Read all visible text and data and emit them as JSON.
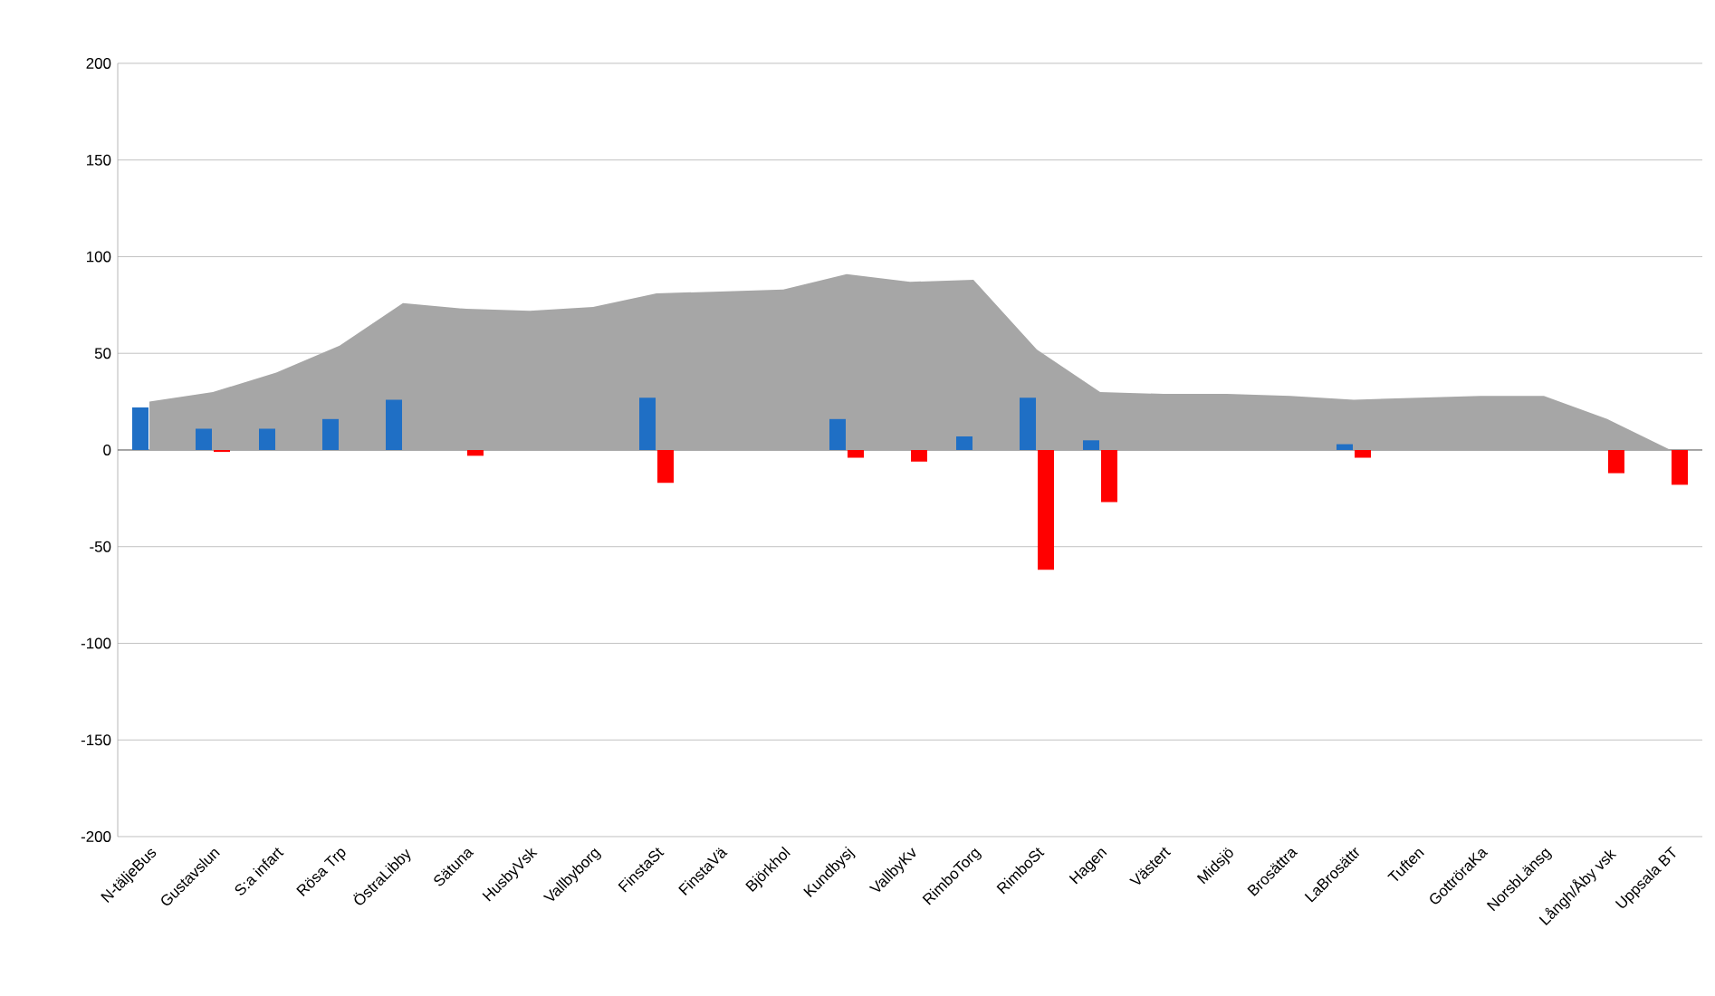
{
  "chart_data": {
    "type": "bar",
    "categories": [
      "N-täljeBus",
      "Gustavslun",
      "S:a infart",
      "Rösa Trp",
      "ÖstraLibby",
      "Sätuna",
      "HusbyVsk",
      "Vallbyborg",
      "FinstaSt",
      "FinstaVä",
      "Björkhol",
      "Kundbysj",
      "VallbyKv",
      "RimboTorg",
      "RimboSt",
      "Hagen",
      "Västert",
      "Midsjö",
      "Brosättra",
      "LaBrosättr",
      "Tuften",
      "GottröraKa",
      "NorsbLänsg",
      "Långh/Åby vsk",
      "Uppsala BT"
    ],
    "series": [
      {
        "type": "area",
        "color": "#a6a6a6",
        "values": [
          25,
          30,
          40,
          54,
          76,
          73,
          72,
          74,
          81,
          82,
          83,
          91,
          87,
          88,
          52,
          30,
          29,
          29,
          28,
          26,
          27,
          28,
          28,
          16,
          0
        ]
      },
      {
        "color": "#1f6fc5",
        "values": [
          22,
          11,
          11,
          16,
          26,
          0,
          0,
          0,
          27,
          0,
          0,
          16,
          0,
          7,
          27,
          5,
          0,
          0,
          0,
          3,
          0,
          0,
          0,
          0,
          0
        ]
      },
      {
        "color": "#ff0000",
        "values": [
          0,
          -1,
          0,
          0,
          0,
          -3,
          0,
          0,
          -17,
          0,
          0,
          -4,
          -6,
          0,
          -62,
          -27,
          0,
          0,
          0,
          -4,
          0,
          0,
          0,
          -12,
          -18
        ]
      }
    ],
    "ylim": [
      -200,
      200
    ],
    "yticks": [
      -200,
      -150,
      -100,
      -50,
      0,
      50,
      100,
      150,
      200
    ],
    "grid": "y"
  }
}
